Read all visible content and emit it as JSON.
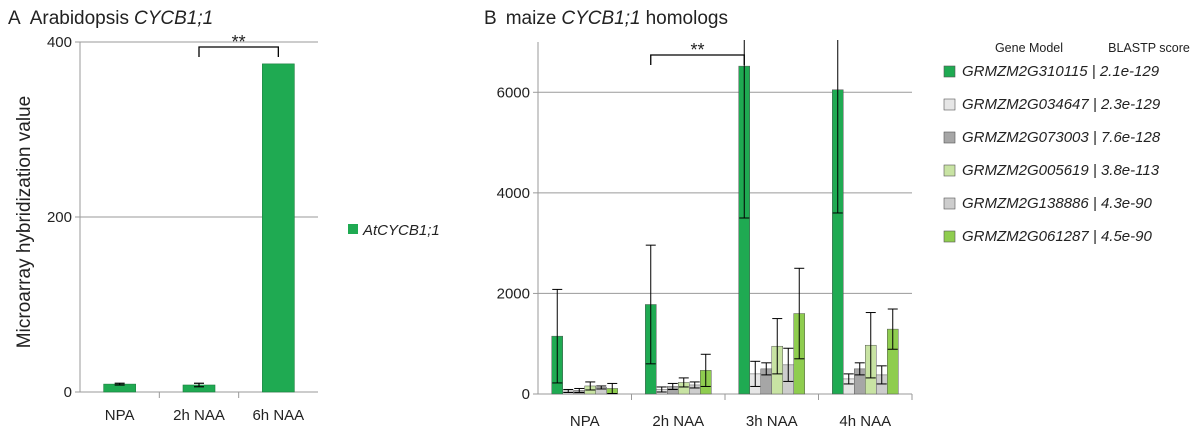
{
  "colors": {
    "dark_green": "#1faa52",
    "grid": "#9a9a9a",
    "series": [
      "#1faa52",
      "#e6e6e6",
      "#a6a6a6",
      "#c8e3a3",
      "#cdcdcd",
      "#8fcd4f"
    ]
  },
  "chart_data": [
    {
      "type": "bar",
      "panel_letter": "A",
      "title_prefix": "Arabidopsis",
      "title_gene": "CYCB1;1",
      "ylabel": "Microarray hybridization value",
      "categories": [
        "NPA",
        "2h NAA",
        "6h NAA"
      ],
      "ylim": [
        0,
        400
      ],
      "yticks": [
        "0",
        "200",
        "400"
      ],
      "grid": true,
      "series": [
        {
          "name": "AtCYCB1;1",
          "values": [
            9,
            8,
            375
          ],
          "error": [
            1,
            2,
            0
          ]
        }
      ],
      "significance": {
        "label": "**",
        "between": [
          "2h NAA",
          "6h NAA"
        ]
      },
      "legend_position": "right"
    },
    {
      "type": "bar",
      "panel_letter": "B",
      "title_prefix": "maize",
      "title_gene": "CYCB1;1",
      "title_suffix": "homologs",
      "categories": [
        "NPA",
        "2h NAA",
        "3h NAA",
        "4h NAA"
      ],
      "ylim": [
        0,
        7000
      ],
      "yticks": [
        "0",
        "2000",
        "4000",
        "6000"
      ],
      "grid": true,
      "series": [
        {
          "name": "GRMZM2G310115",
          "score": "2.1e-129",
          "values": [
            1150,
            1780,
            6520,
            6050
          ],
          "error": [
            930,
            1180,
            3020,
            2450
          ]
        },
        {
          "name": "GRMZM2G034647",
          "score": "2.3e-129",
          "values": [
            60,
            90,
            400,
            300
          ],
          "error": [
            30,
            50,
            250,
            100
          ]
        },
        {
          "name": "GRMZM2G073003",
          "score": "7.6e-128",
          "values": [
            70,
            150,
            500,
            500
          ],
          "error": [
            40,
            60,
            120,
            120
          ]
        },
        {
          "name": "GRMZM2G005619",
          "score": "3.8e-113",
          "values": [
            160,
            230,
            950,
            970
          ],
          "error": [
            80,
            90,
            550,
            650
          ]
        },
        {
          "name": "GRMZM2G138886",
          "score": "4.3e-90",
          "values": [
            130,
            180,
            580,
            380
          ],
          "error": [
            30,
            60,
            330,
            180
          ]
        },
        {
          "name": "GRMZM2G061287",
          "score": "4.5e-90",
          "values": [
            110,
            470,
            1600,
            1290
          ],
          "error": [
            100,
            320,
            900,
            400
          ]
        }
      ],
      "significance": {
        "label": "**",
        "from_category": "2h NAA",
        "to_category": "3h NAA"
      },
      "legend_header": {
        "col1": "Gene Model",
        "col2": "BLASTP score"
      },
      "legend_position": "right"
    }
  ]
}
